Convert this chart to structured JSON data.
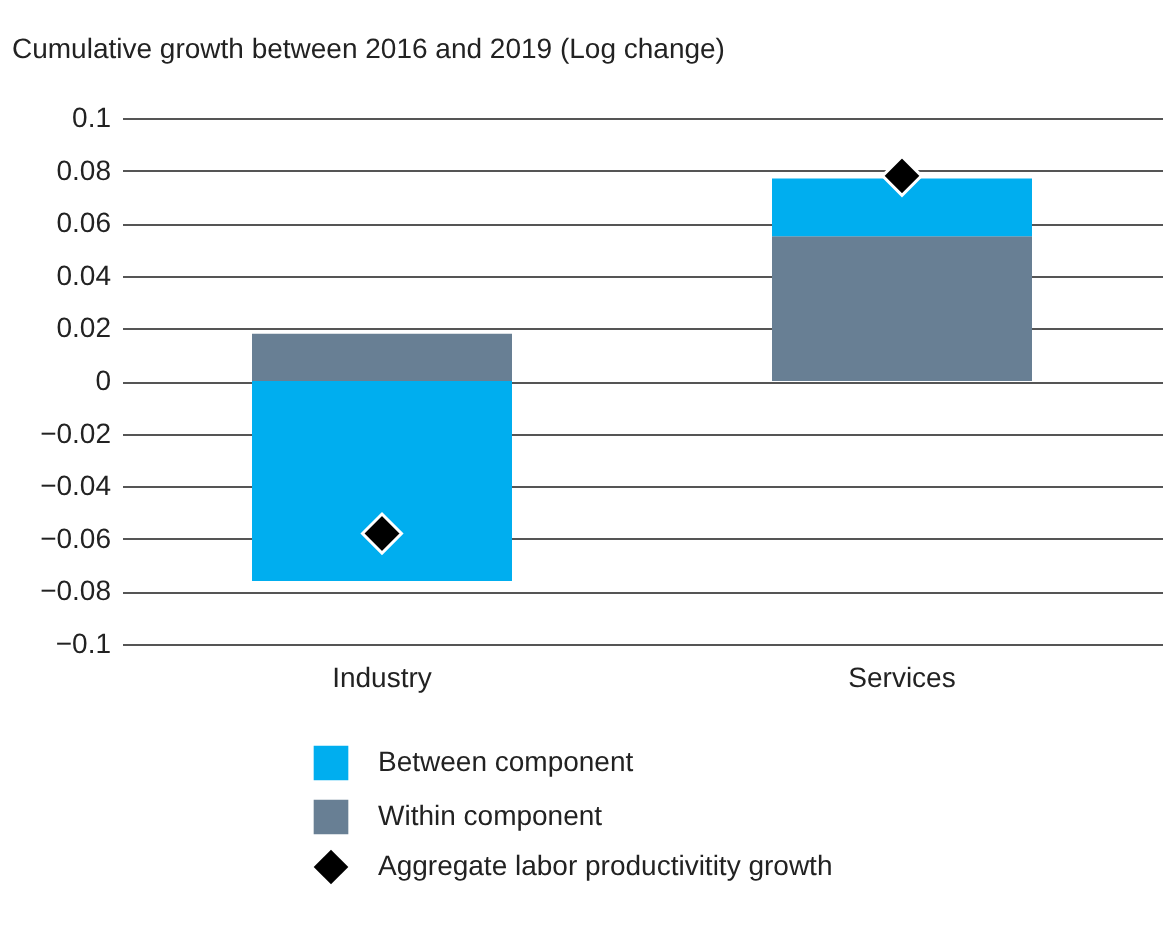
{
  "chart_data": {
    "type": "bar",
    "title": "Cumulative growth between 2016 and 2019 (Log change)",
    "categories": [
      "Industry",
      "Services"
    ],
    "stacked": true,
    "series": [
      {
        "name": "Within component",
        "color": "#687f94",
        "values": [
          0.018,
          0.055
        ]
      },
      {
        "name": "Between component",
        "color": "#00aeef",
        "values": [
          -0.076,
          0.022
        ]
      },
      {
        "name": "Aggregate labor productivitity growth",
        "type": "scatter",
        "marker": "diamond",
        "color": "#000000",
        "values": [
          -0.058,
          0.078
        ]
      }
    ],
    "ylim": [
      -0.1,
      0.1
    ],
    "yticks": [
      {
        "value": -0.1,
        "label": "−0.1"
      },
      {
        "value": -0.08,
        "label": "−0.08"
      },
      {
        "value": -0.06,
        "label": "−0.06"
      },
      {
        "value": -0.04,
        "label": "−0.04"
      },
      {
        "value": -0.02,
        "label": "−0.02"
      },
      0,
      0.02,
      0.04,
      0.06,
      0.08,
      0.1
    ],
    "grid": "y",
    "legend": "bottom"
  }
}
